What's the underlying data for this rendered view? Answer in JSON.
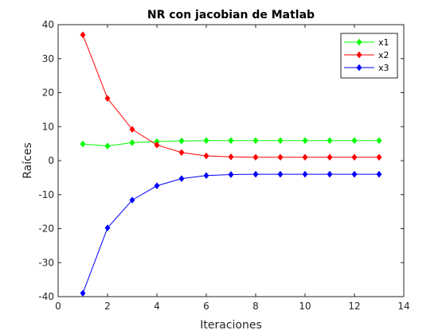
{
  "chart_data": {
    "type": "line",
    "title": "NR con jacobian de Matlab",
    "xlabel": "Iteraciones",
    "ylabel": "Raíces",
    "xlim": [
      0,
      14
    ],
    "ylim": [
      -40,
      40
    ],
    "xticks": [
      0,
      2,
      4,
      6,
      8,
      10,
      12,
      14
    ],
    "yticks": [
      -40,
      -30,
      -20,
      -10,
      0,
      10,
      20,
      30,
      40
    ],
    "xtick_labels": [
      "0",
      "2",
      "4",
      "6",
      "8",
      "10",
      "12",
      "14"
    ],
    "ytick_labels": [
      "-40",
      "-30",
      "-20",
      "-10",
      "0",
      "10",
      "20",
      "30",
      "40"
    ],
    "grid": false,
    "legend_position": "top-right",
    "x": [
      1,
      2,
      3,
      4,
      5,
      6,
      7,
      8,
      9,
      10,
      11,
      12,
      13
    ],
    "series": [
      {
        "name": "x1",
        "color": "#00ff00",
        "marker": "diamond",
        "values": [
          4.9,
          4.3,
          5.3,
          5.6,
          5.8,
          5.9,
          5.9,
          5.9,
          5.9,
          5.9,
          5.9,
          5.9,
          5.9
        ]
      },
      {
        "name": "x2",
        "color": "#ff0000",
        "marker": "diamond",
        "values": [
          37.0,
          18.3,
          9.2,
          4.6,
          2.4,
          1.4,
          1.1,
          1.0,
          1.0,
          1.0,
          1.0,
          1.0,
          1.0
        ]
      },
      {
        "name": "x3",
        "color": "#0000ff",
        "marker": "diamond",
        "values": [
          -39.0,
          -19.8,
          -11.6,
          -7.4,
          -5.3,
          -4.4,
          -4.1,
          -4.0,
          -4.0,
          -4.0,
          -4.0,
          -4.0,
          -4.0
        ]
      }
    ]
  }
}
